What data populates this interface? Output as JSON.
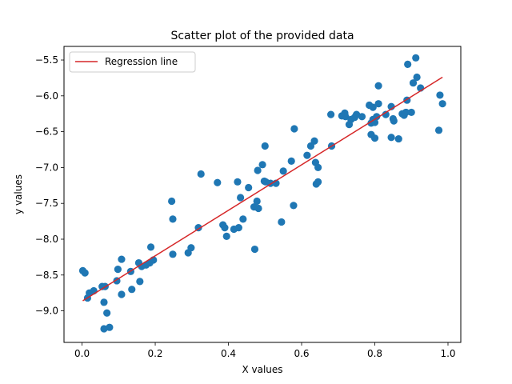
{
  "chart_data": {
    "type": "scatter",
    "title": "Scatter plot of the provided data",
    "xlabel": "X values",
    "ylabel": "y values",
    "xlim": [
      -0.0493,
      1.035
    ],
    "ylim": [
      -9.44,
      -5.31
    ],
    "x_ticks": [
      "0.0",
      "0.2",
      "0.4",
      "0.6",
      "0.8",
      "1.0"
    ],
    "x_tick_values": [
      0.0,
      0.2,
      0.4,
      0.6,
      0.8,
      1.0
    ],
    "y_ticks": [
      "−5.5",
      "−6.0",
      "−6.5",
      "−7.0",
      "−7.5",
      "−8.0",
      "−8.5",
      "−9.0"
    ],
    "y_tick_values": [
      -5.5,
      -6.0,
      -6.5,
      -7.0,
      -7.5,
      -8.0,
      -8.5,
      -9.0
    ],
    "grid": false,
    "legend": {
      "position": "top-left",
      "entries": [
        "Regression line"
      ]
    },
    "series": [
      {
        "kind": "points",
        "color": "#1f77b4",
        "points": [
          [
            0.002,
            -8.44
          ],
          [
            0.008,
            -8.47
          ],
          [
            0.015,
            -8.82
          ],
          [
            0.02,
            -8.75
          ],
          [
            0.032,
            -8.72
          ],
          [
            0.055,
            -8.66
          ],
          [
            0.063,
            -8.66
          ],
          [
            0.06,
            -8.88
          ],
          [
            0.068,
            -9.03
          ],
          [
            0.06,
            -9.25
          ],
          [
            0.075,
            -9.23
          ],
          [
            0.095,
            -8.58
          ],
          [
            0.098,
            -8.42
          ],
          [
            0.108,
            -8.28
          ],
          [
            0.108,
            -8.77
          ],
          [
            0.133,
            -8.45
          ],
          [
            0.136,
            -8.7
          ],
          [
            0.155,
            -8.33
          ],
          [
            0.158,
            -8.59
          ],
          [
            0.163,
            -8.38
          ],
          [
            0.175,
            -8.36
          ],
          [
            0.185,
            -8.33
          ],
          [
            0.188,
            -8.11
          ],
          [
            0.195,
            -8.29
          ],
          [
            0.245,
            -7.47
          ],
          [
            0.248,
            -7.72
          ],
          [
            0.248,
            -8.21
          ],
          [
            0.29,
            -8.19
          ],
          [
            0.298,
            -8.12
          ],
          [
            0.318,
            -7.84
          ],
          [
            0.325,
            -7.09
          ],
          [
            0.37,
            -7.21
          ],
          [
            0.385,
            -7.8
          ],
          [
            0.39,
            -7.84
          ],
          [
            0.395,
            -7.96
          ],
          [
            0.415,
            -7.86
          ],
          [
            0.425,
            -7.2
          ],
          [
            0.428,
            -7.84
          ],
          [
            0.433,
            -7.42
          ],
          [
            0.44,
            -7.72
          ],
          [
            0.455,
            -7.28
          ],
          [
            0.47,
            -7.55
          ],
          [
            0.472,
            -8.14
          ],
          [
            0.478,
            -7.47
          ],
          [
            0.48,
            -7.04
          ],
          [
            0.482,
            -7.57
          ],
          [
            0.493,
            -6.96
          ],
          [
            0.498,
            -7.19
          ],
          [
            0.5,
            -6.7
          ],
          [
            0.502,
            -7.2
          ],
          [
            0.515,
            -7.22
          ],
          [
            0.53,
            -7.22
          ],
          [
            0.545,
            -7.76
          ],
          [
            0.55,
            -7.05
          ],
          [
            0.572,
            -6.91
          ],
          [
            0.578,
            -7.53
          ],
          [
            0.58,
            -6.46
          ],
          [
            0.615,
            -6.83
          ],
          [
            0.625,
            -6.7
          ],
          [
            0.635,
            -6.63
          ],
          [
            0.638,
            -6.93
          ],
          [
            0.64,
            -7.23
          ],
          [
            0.645,
            -7.2
          ],
          [
            0.645,
            -7.0
          ],
          [
            0.68,
            -6.26
          ],
          [
            0.682,
            -6.7
          ],
          [
            0.71,
            -6.28
          ],
          [
            0.718,
            -6.24
          ],
          [
            0.72,
            -6.29
          ],
          [
            0.73,
            -6.4
          ],
          [
            0.735,
            -6.33
          ],
          [
            0.745,
            -6.3
          ],
          [
            0.75,
            -6.26
          ],
          [
            0.765,
            -6.29
          ],
          [
            0.785,
            -6.13
          ],
          [
            0.79,
            -6.38
          ],
          [
            0.79,
            -6.54
          ],
          [
            0.795,
            -6.33
          ],
          [
            0.795,
            -6.16
          ],
          [
            0.8,
            -6.37
          ],
          [
            0.8,
            -6.59
          ],
          [
            0.805,
            -6.29
          ],
          [
            0.81,
            -5.86
          ],
          [
            0.81,
            -6.11
          ],
          [
            0.83,
            -6.26
          ],
          [
            0.845,
            -6.58
          ],
          [
            0.845,
            -6.15
          ],
          [
            0.85,
            -6.32
          ],
          [
            0.852,
            -6.35
          ],
          [
            0.865,
            -6.6
          ],
          [
            0.875,
            -6.25
          ],
          [
            0.88,
            -6.27
          ],
          [
            0.885,
            -6.23
          ],
          [
            0.888,
            -6.06
          ],
          [
            0.89,
            -5.56
          ],
          [
            0.9,
            -6.23
          ],
          [
            0.905,
            -5.82
          ],
          [
            0.912,
            -5.47
          ],
          [
            0.915,
            -5.74
          ],
          [
            0.925,
            -5.89
          ],
          [
            0.975,
            -6.48
          ],
          [
            0.978,
            -5.99
          ],
          [
            0.985,
            -6.11
          ]
        ]
      },
      {
        "kind": "line",
        "name": "Regression line",
        "color": "#d62728",
        "x": [
          0.002,
          0.985
        ],
        "y": [
          -8.86,
          -5.74
        ]
      }
    ]
  }
}
